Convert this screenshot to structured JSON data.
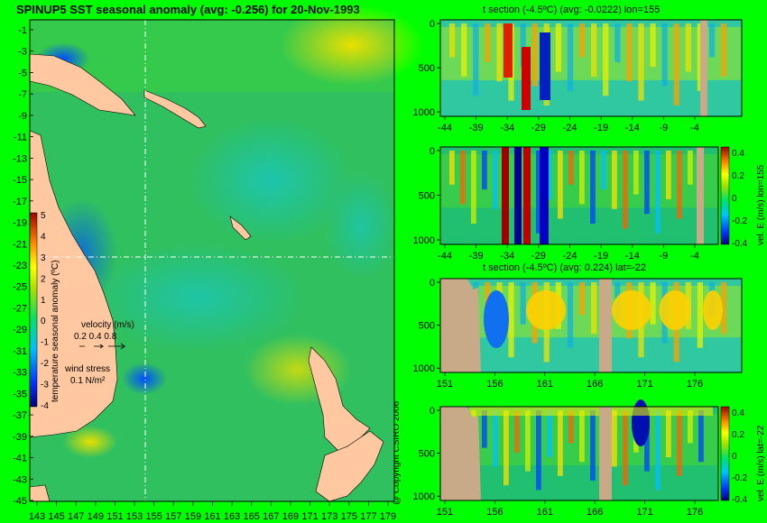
{
  "title": "SPINUP5 SST seasonal anomaly (avg: -0.256) for 20-Nov-1993",
  "copyright": "@ Copyright CSIRO 2006",
  "map": {
    "lat_ticks": [
      "-1",
      "-3",
      "-5",
      "-7",
      "-9",
      "-11",
      "-13",
      "-15",
      "-17",
      "-19",
      "-21",
      "-23",
      "-25",
      "-27",
      "-29",
      "-31",
      "-33",
      "-35",
      "-37",
      "-39",
      "-41",
      "-43",
      "-45"
    ],
    "lon_ticks": [
      "143",
      "145",
      "147",
      "149",
      "151",
      "153",
      "155",
      "157",
      "159",
      "161",
      "163",
      "165",
      "167",
      "169",
      "171",
      "173",
      "175",
      "177",
      "179"
    ],
    "colorbar_ticks": [
      "5",
      "4",
      "3",
      "2",
      "1",
      "0",
      "-1",
      "-2",
      "-3",
      "-4"
    ],
    "colorbar_label": "temperature seasonal anomaly (ºC)",
    "velocity_label": "velocity (m/s)",
    "velocity_values": "0.2 0.4 0.8",
    "wind_label": "wind stress",
    "wind_value": "0.1 N/m²",
    "section_lon": 155,
    "section_lat": -22
  },
  "chart_data": [
    {
      "type": "heatmap",
      "title": "SPINUP5 SST seasonal anomaly (avg: -0.256) for 20-Nov-1993",
      "x_ticks": [
        143,
        145,
        147,
        149,
        151,
        153,
        155,
        157,
        159,
        161,
        163,
        165,
        167,
        169,
        171,
        173,
        175,
        177,
        179
      ],
      "y_ticks": [
        -1,
        -3,
        -5,
        -7,
        -9,
        -11,
        -13,
        -15,
        -17,
        -19,
        -21,
        -23,
        -25,
        -27,
        -29,
        -31,
        -33,
        -35,
        -37,
        -39,
        -41,
        -43,
        -45
      ],
      "colorbar_range": [
        -4,
        5
      ],
      "colorbar_label": "temperature seasonal anomaly (ºC)"
    },
    {
      "type": "heatmap",
      "title": "t section (-4.5ºC) (avg: -0.0222) lon=155",
      "x_ticks": [
        -44,
        -39,
        -34,
        -29,
        -24,
        -19,
        -14,
        -9,
        -4
      ],
      "y_ticks": [
        0,
        500,
        1000
      ]
    },
    {
      "type": "heatmap",
      "title": "",
      "x_ticks": [
        -44,
        -39,
        -34,
        -29,
        -24,
        -19,
        -14,
        -9,
        -4
      ],
      "y_ticks": [
        0,
        500,
        1000
      ],
      "colorbar_ticks": [
        "0.4",
        "0.2",
        "0",
        "-0.2",
        "-0.4"
      ],
      "colorbar_label": "vel. E (m/s) lon=155"
    },
    {
      "type": "heatmap",
      "title": "t section (-4.5ºC) (avg: 0.224) lat=-22",
      "x_ticks": [
        151,
        156,
        161,
        166,
        171,
        176
      ],
      "y_ticks": [
        0,
        500,
        1000
      ]
    },
    {
      "type": "heatmap",
      "title": "",
      "x_ticks": [
        151,
        156,
        161,
        166,
        171,
        176
      ],
      "y_ticks": [
        0,
        500,
        1000
      ],
      "colorbar_ticks": [
        "0.4",
        "0.2",
        "0",
        "-0.2",
        "-0.4"
      ],
      "colorbar_label": "vel. E (m/s) lat=-22"
    }
  ]
}
